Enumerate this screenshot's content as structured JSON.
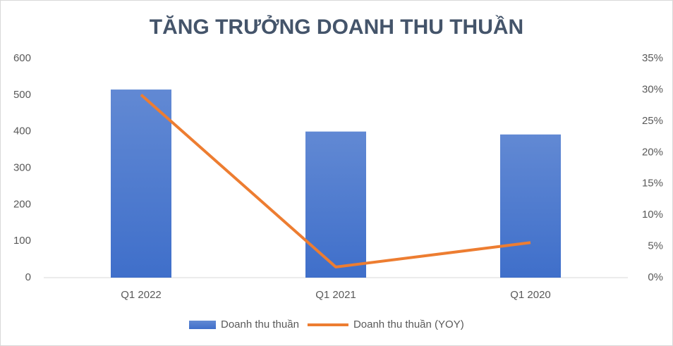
{
  "chart_data": {
    "type": "combo",
    "title": "TĂNG TRƯỞNG DOANH THU THUẦN",
    "categories": [
      "Q1 2022",
      "Q1 2021",
      "Q1 2020"
    ],
    "series": [
      {
        "name": "Doanh thu thuần",
        "type": "bar",
        "color": "#3f6fca",
        "values": [
          515,
          400,
          392
        ]
      },
      {
        "name": "Doanh thu thuần (YOY)",
        "type": "line",
        "axis": "y2",
        "color": "#ed7d31",
        "values": [
          29.2,
          1.7,
          5.6
        ]
      }
    ],
    "ylim": [
      0,
      600
    ],
    "yticks": [
      0,
      100,
      200,
      300,
      400,
      500,
      600
    ],
    "y2lim": [
      0,
      35
    ],
    "y2ticks": [
      {
        "value": 0,
        "label": "0%"
      },
      {
        "value": 5,
        "label": "5%"
      },
      {
        "value": 10,
        "label": "10%"
      },
      {
        "value": 15,
        "label": "15%"
      },
      {
        "value": 20,
        "label": "20%"
      },
      {
        "value": 25,
        "label": "25%"
      },
      {
        "value": 30,
        "label": "30%"
      },
      {
        "value": 35,
        "label": "35%"
      }
    ],
    "legend": "bottom"
  }
}
